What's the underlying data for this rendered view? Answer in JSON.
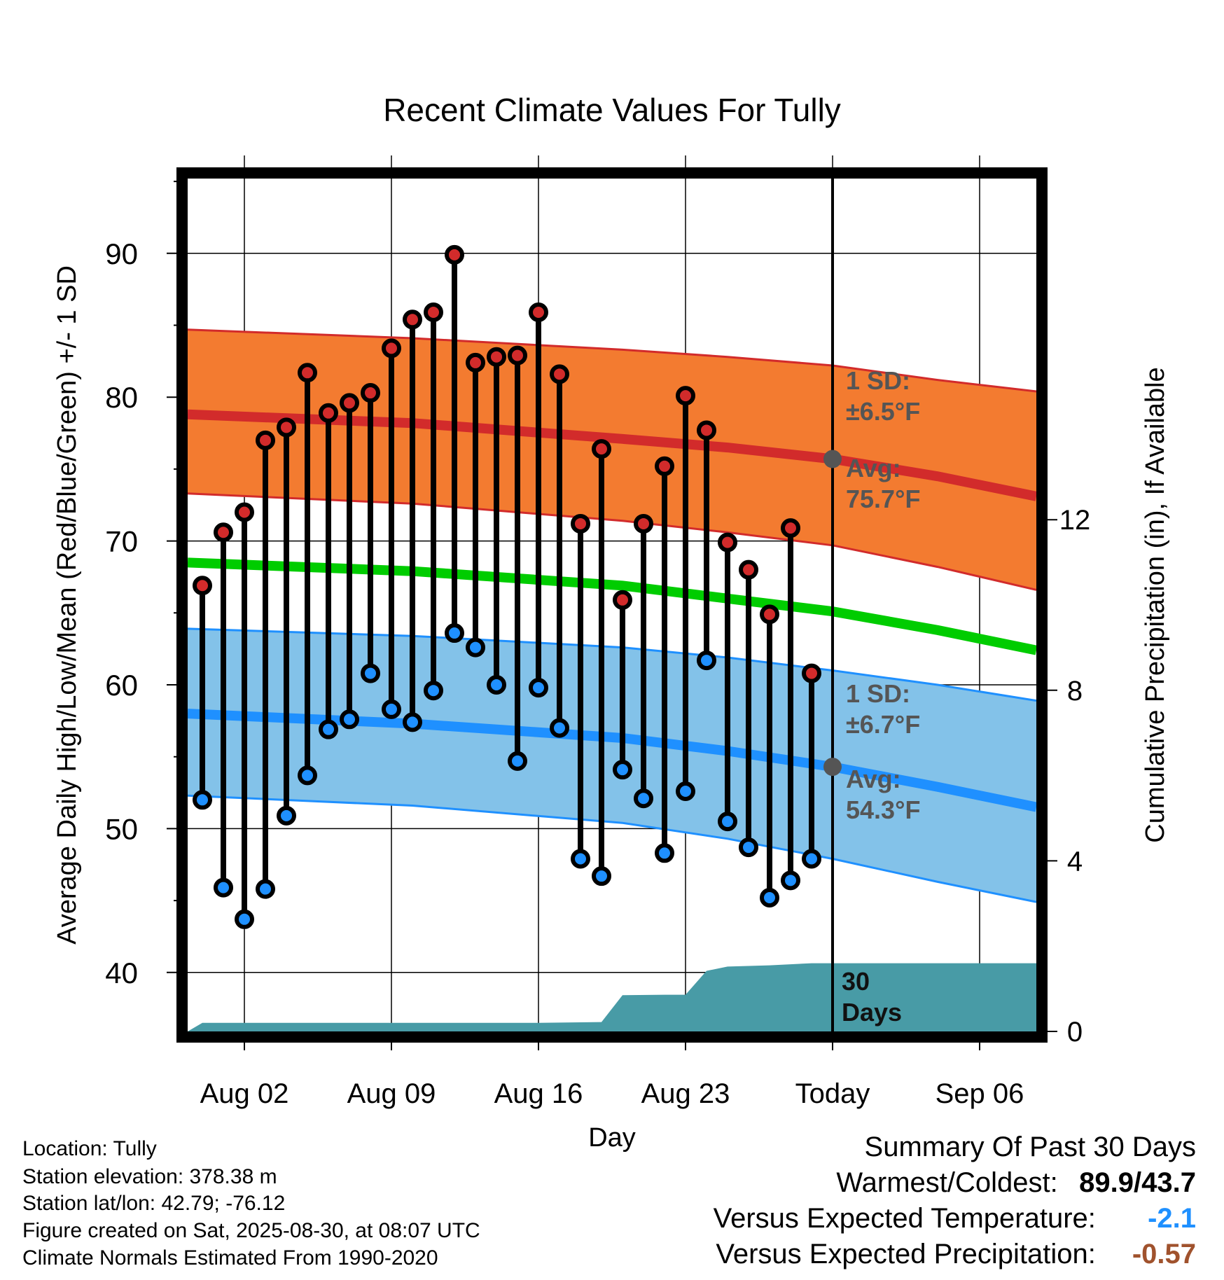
{
  "chart_data": {
    "type": "line",
    "title": "Recent Climate Values For Tully",
    "xlabel": "Day",
    "ylabel": "Average Daily High/Low/Mean (Red/Blue/Green) +/- 1 SD",
    "y2label": "Cumulative Precipitation (in), If Available",
    "x_tick_labels": [
      "Aug 02",
      "Aug 09",
      "Aug 16",
      "Aug 23",
      "Today",
      "Sep 06"
    ],
    "x_tick_days": [
      2,
      9,
      16,
      23,
      30,
      37
    ],
    "xlim": [
      -0.7,
      39.7
    ],
    "ylim": [
      35.9,
      95.2
    ],
    "yticks": [
      40,
      50,
      60,
      70,
      80,
      90
    ],
    "y2lim": [
      0,
      20
    ],
    "y2ticks": [
      0,
      4,
      8,
      12
    ],
    "grid": true,
    "today_day": 30,
    "daily": {
      "days": [
        0,
        1,
        2,
        3,
        4,
        5,
        6,
        7,
        8,
        9,
        10,
        11,
        12,
        13,
        14,
        15,
        16,
        17,
        18,
        19,
        20,
        21,
        22,
        23,
        24,
        25,
        26,
        27,
        28,
        29
      ],
      "high": [
        66.9,
        70.6,
        72.0,
        77.0,
        77.9,
        81.7,
        78.9,
        79.6,
        80.3,
        83.4,
        85.4,
        85.9,
        89.9,
        82.4,
        82.8,
        82.9,
        85.9,
        81.6,
        71.2,
        76.4,
        65.9,
        71.2,
        75.2,
        80.1,
        77.7,
        69.9,
        68.0,
        64.9,
        70.9,
        60.8
      ],
      "low": [
        52.0,
        45.9,
        43.7,
        45.8,
        50.9,
        53.7,
        56.9,
        57.6,
        60.8,
        58.3,
        57.4,
        59.6,
        63.6,
        62.6,
        60.0,
        54.7,
        59.8,
        57.0,
        47.9,
        46.7,
        54.1,
        52.1,
        48.3,
        52.6,
        61.7,
        50.5,
        48.7,
        45.2,
        46.4,
        47.9
      ]
    },
    "normals": {
      "days": [
        -0.7,
        10,
        20,
        25,
        30,
        35,
        39.7
      ],
      "high_avg": [
        78.8,
        78.2,
        77.1,
        76.5,
        75.7,
        74.5,
        73.1
      ],
      "high_sd_upper": [
        84.7,
        84.1,
        83.3,
        82.8,
        82.2,
        81.2,
        80.4
      ],
      "high_sd_lower": [
        73.3,
        72.6,
        71.4,
        70.6,
        69.7,
        68.2,
        66.6
      ],
      "mean_avg": [
        68.5,
        67.9,
        66.9,
        66.0,
        65.1,
        63.8,
        62.4
      ],
      "low_avg": [
        58.0,
        57.3,
        56.3,
        55.4,
        54.3,
        52.9,
        51.5
      ],
      "low_sd_upper": [
        63.9,
        63.4,
        62.6,
        61.9,
        61.0,
        60.0,
        58.9
      ],
      "low_sd_lower": [
        52.3,
        51.6,
        50.4,
        49.3,
        47.9,
        46.3,
        44.9
      ]
    },
    "precipitation": {
      "days": [
        -0.7,
        0,
        10,
        16,
        19,
        20,
        22,
        23,
        24,
        25,
        27,
        29,
        39.7
      ],
      "cumulative_in": [
        0,
        0.2,
        0.2,
        0.2,
        0.22,
        0.85,
        0.86,
        0.86,
        1.42,
        1.52,
        1.55,
        1.6,
        1.6
      ]
    },
    "annotations": {
      "high_sd_label": "1 SD:",
      "high_sd_value": "±6.5°F",
      "high_avg_label": "Avg:",
      "high_avg_value": "75.7°F",
      "low_sd_label": "1 SD:",
      "low_sd_value": "±6.7°F",
      "low_avg_label": "Avg:",
      "low_avg_value": "54.3°F",
      "days_number": "30",
      "days_word": "Days"
    }
  },
  "colors": {
    "high_band": "#f37b30",
    "high_line": "#d22b2b",
    "mean_line": "#00cc00",
    "low_band": "#83c2e9",
    "low_line": "#1f90ff",
    "precip_fill": "#489ba6",
    "marker_high": "#d22b2b",
    "marker_low": "#1f90ff",
    "annotation_text": "#555555",
    "versus_temp": "#1f90ff",
    "versus_precip": "#a0522d"
  },
  "station": {
    "location": "Location: Tully",
    "elevation": "Station elevation: 378.38 m",
    "latlon": "Station lat/lon: 42.79; -76.12",
    "created": "Figure created on Sat, 2025-08-30, at 08:07 UTC",
    "normals": "Climate Normals Estimated From 1990-2020"
  },
  "summary": {
    "title": "Summary Of Past 30 Days",
    "warmest_label": "Warmest/Coldest:",
    "warmest_value": "89.9/43.7",
    "temp_label": "Versus Expected Temperature:",
    "temp_value": "-2.1",
    "precip_label": "Versus Expected Precipitation:",
    "precip_value": "-0.57"
  }
}
